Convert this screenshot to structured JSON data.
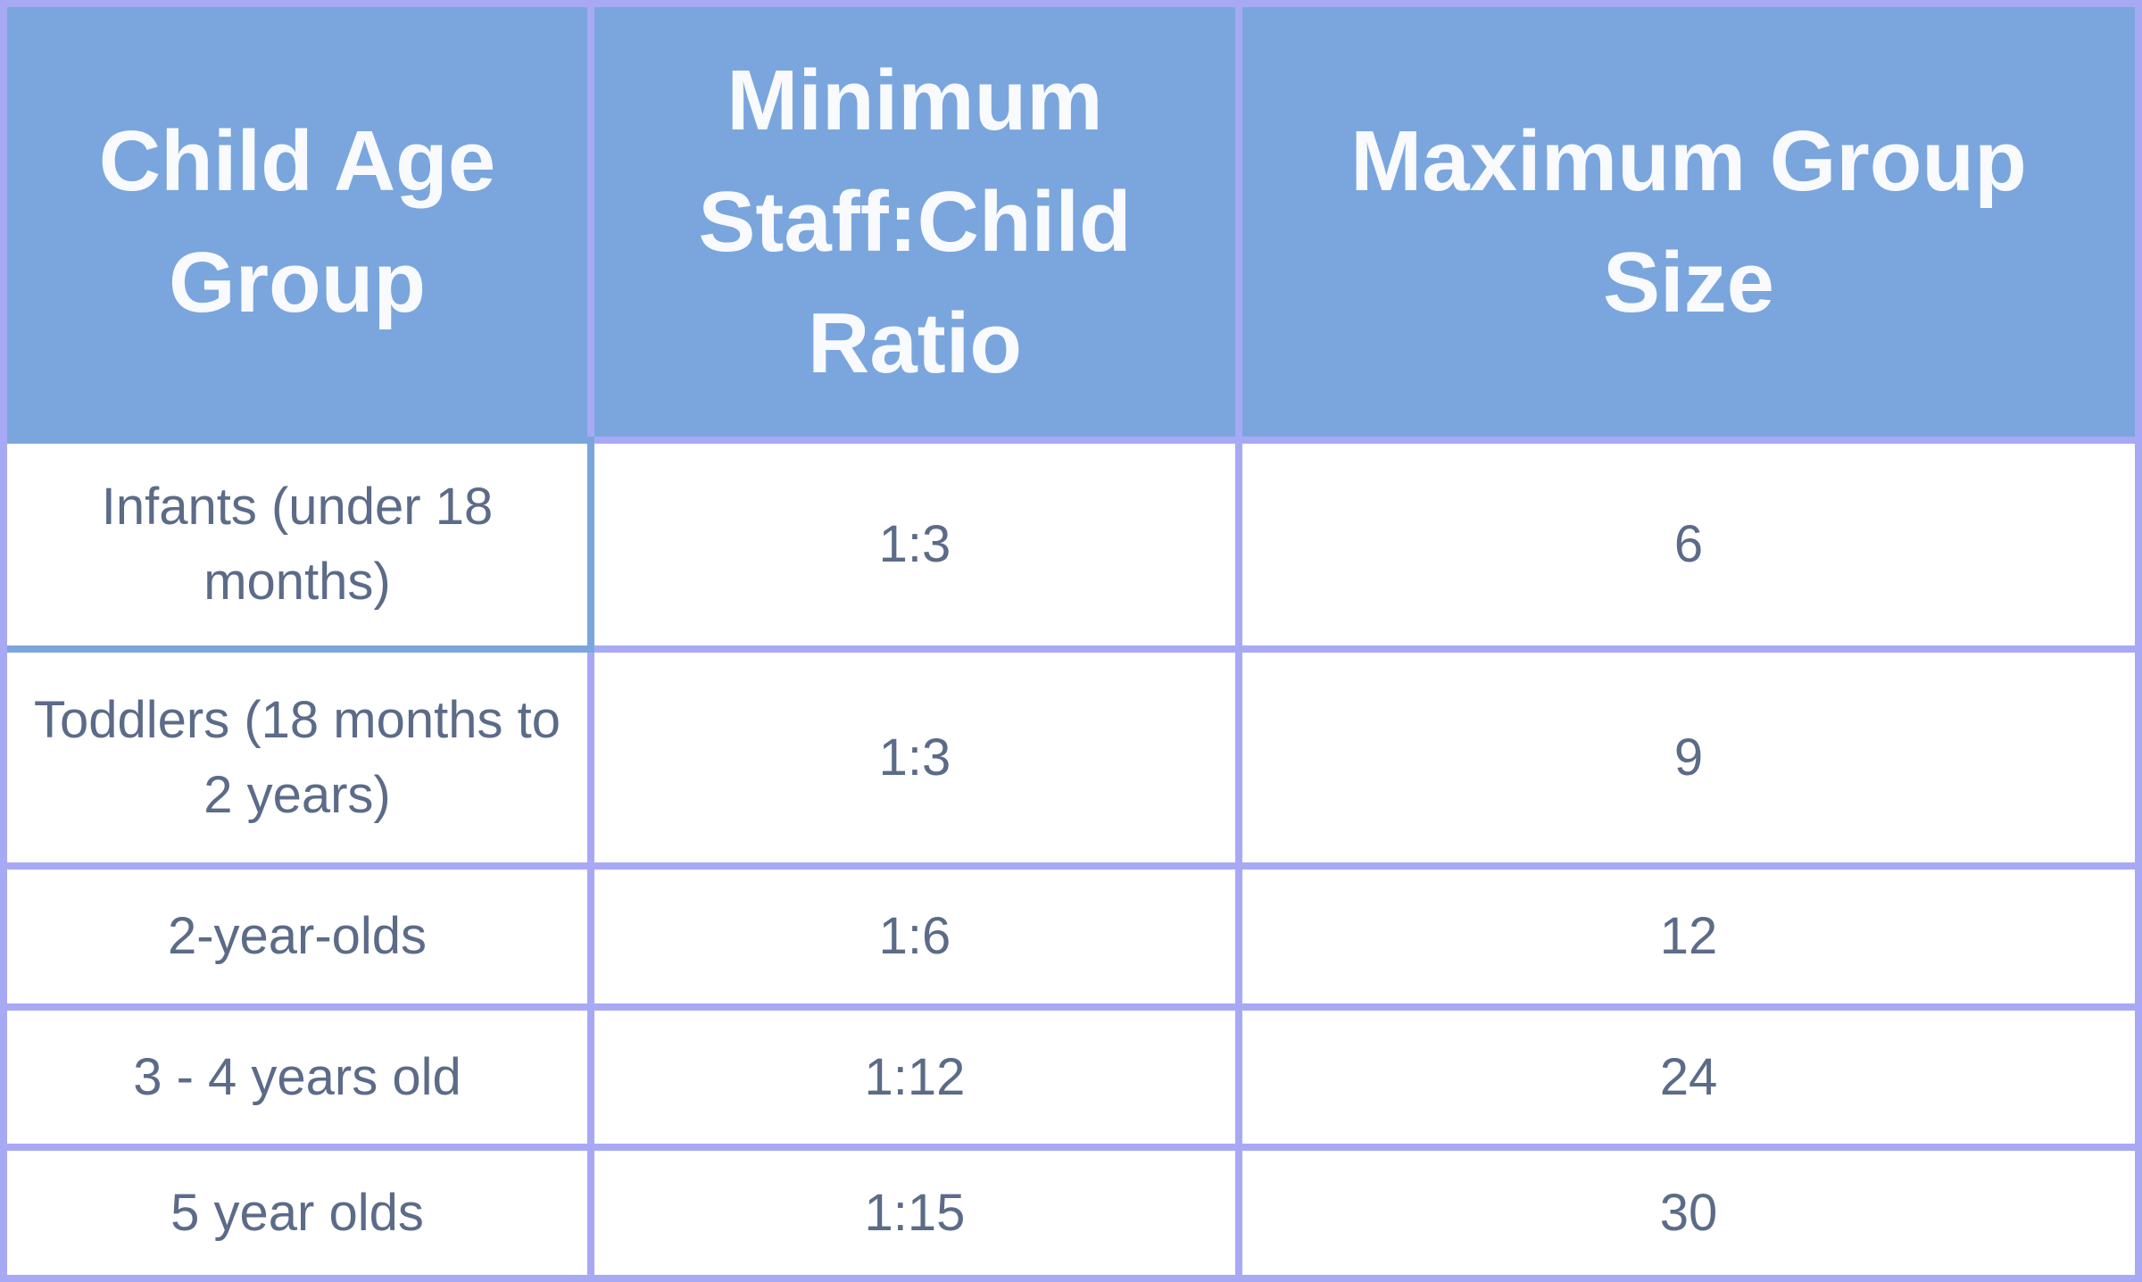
{
  "colors": {
    "--accent": "#7aa6dd",
    "--border-c": "#a8a9f5",
    "--body-text": "#5b6b88",
    "--header-text": "#f8fafd",
    "--cell-bg": "#ffffff"
  },
  "table": {
    "columns": [
      {
        "label": "Child Age Group"
      },
      {
        "label": "Minimum Staff:Child Ratio"
      },
      {
        "label": "Maximum Group Size"
      }
    ],
    "rows": [
      {
        "age_group": "Infants (under 18 months)",
        "ratio": "1:3",
        "max_group": "6"
      },
      {
        "age_group": "Toddlers (18 months to 2 years)",
        "ratio": "1:3",
        "max_group": "9"
      },
      {
        "age_group": "2-year-olds",
        "ratio": "1:6",
        "max_group": "12"
      },
      {
        "age_group": "3 - 4 years old",
        "ratio": "1:12",
        "max_group": "24"
      },
      {
        "age_group": "5 year olds",
        "ratio": "1:15",
        "max_group": "30"
      }
    ]
  }
}
